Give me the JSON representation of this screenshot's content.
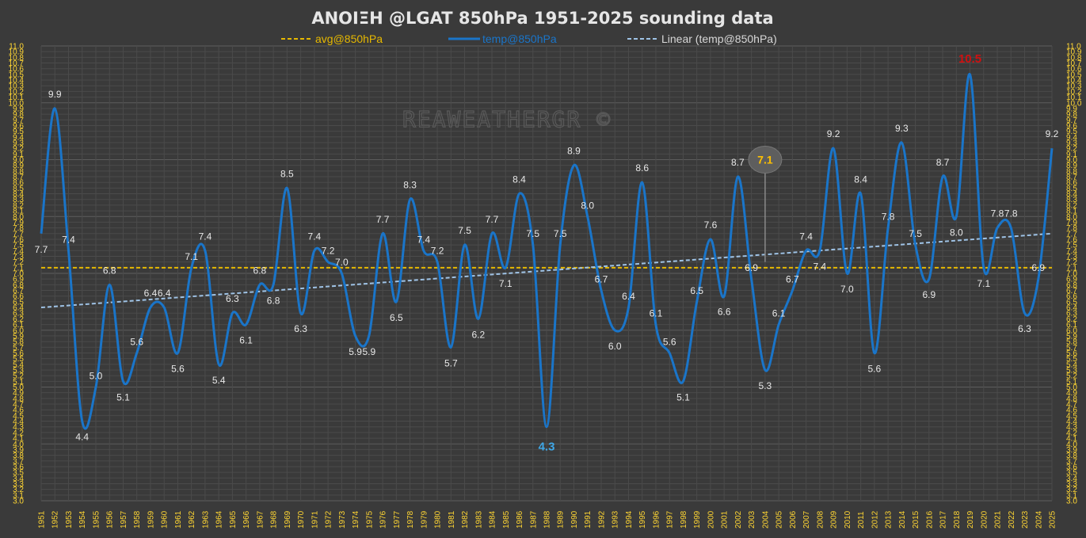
{
  "chart_data": {
    "type": "line",
    "title": "ΑΝΟΙΞΗ   @LGAT  850hPa  1951-2025 sounding data",
    "watermark": "REAWEATHERGR ©",
    "legend": {
      "placement": "top",
      "items": [
        {
          "key": "avg",
          "label": "avg@850hPa",
          "color": "#e6b800"
        },
        {
          "key": "temp",
          "label": "temp@850hPa",
          "color": "#1a75c9"
        },
        {
          "key": "linear",
          "label": "Linear (temp@850hPa)",
          "color": "#9fc3e6"
        }
      ]
    },
    "ylim": [
      3.0,
      11.0
    ],
    "ytick_step": 0.1,
    "grid": true,
    "x": [
      1951,
      1952,
      1953,
      1954,
      1955,
      1956,
      1957,
      1958,
      1959,
      1960,
      1961,
      1962,
      1963,
      1964,
      1965,
      1966,
      1967,
      1968,
      1969,
      1970,
      1971,
      1972,
      1973,
      1974,
      1975,
      1976,
      1977,
      1978,
      1979,
      1980,
      1981,
      1982,
      1983,
      1984,
      1985,
      1986,
      1987,
      1988,
      1989,
      1990,
      1991,
      1992,
      1993,
      1994,
      1995,
      1996,
      1997,
      1998,
      1999,
      2000,
      2001,
      2002,
      2003,
      2004,
      2005,
      2006,
      2007,
      2008,
      2009,
      2010,
      2011,
      2012,
      2013,
      2014,
      2015,
      2016,
      2017,
      2018,
      2019,
      2020,
      2021,
      2022,
      2023,
      2024,
      2025
    ],
    "x_labels": [
      "1951",
      "1952",
      "1953",
      "1954",
      "1955",
      "1956",
      "1957",
      "1958",
      "1959",
      "1960",
      "1961",
      "1962",
      "1963",
      "1964",
      "1965",
      "1966",
      "1967",
      "1968",
      "1969",
      "1970",
      "1971",
      "1972",
      "1973",
      "1974",
      "1975",
      "1976",
      "1977",
      "1978",
      "1979",
      "1980",
      "1981",
      "1982",
      "1983",
      "1984",
      "1985",
      "1986",
      "1987",
      "1988",
      "1989",
      "1990",
      "1991",
      "1992",
      "1993",
      "1994",
      "1995",
      "1996",
      "1997",
      "1998",
      "1999",
      "2000",
      "2001",
      "2002",
      "2003",
      "2004",
      "2005",
      "2006",
      "2007",
      "2008",
      "2009",
      "2010",
      "2011",
      "2012",
      "2013",
      "2014",
      "2015",
      "2016",
      "2017",
      "2018",
      "2019",
      "2020",
      "2021",
      "2022",
      "2023",
      "2024",
      "2025"
    ],
    "series": [
      {
        "name": "temp@850hPa",
        "values": [
          7.7,
          9.9,
          7.4,
          4.4,
          5.0,
          6.8,
          5.1,
          5.6,
          6.4,
          6.4,
          5.6,
          7.1,
          7.4,
          5.4,
          6.3,
          6.1,
          6.8,
          6.8,
          8.5,
          6.3,
          7.4,
          7.2,
          7.0,
          5.9,
          5.9,
          7.7,
          6.5,
          8.3,
          7.4,
          7.2,
          5.7,
          7.5,
          6.2,
          7.7,
          7.1,
          8.4,
          7.5,
          4.3,
          7.5,
          8.9,
          8.0,
          6.7,
          6.0,
          6.4,
          8.6,
          6.1,
          5.6,
          5.1,
          6.5,
          7.6,
          6.6,
          8.7,
          6.9,
          5.3,
          6.1,
          6.7,
          7.4,
          7.4,
          9.2,
          7.0,
          8.4,
          5.6,
          7.8,
          9.3,
          7.5,
          6.9,
          8.7,
          8.0,
          10.5,
          7.1,
          7.8,
          7.8,
          6.3,
          6.9,
          9.2
        ],
        "labels": [
          "7.7",
          "9.9",
          "7.4",
          "4.4",
          "5.0",
          "6.8",
          "5.1",
          "5.6",
          "6.4",
          "6.4",
          "5.6",
          "7.1",
          "7.4",
          "5.4",
          "6.3",
          "6.1",
          "6.8",
          "6.8",
          "8.5",
          "6.3",
          "7.4",
          "7.2",
          "7.0",
          "5.9",
          "5.9",
          "7.7",
          "6.5",
          "8.3",
          "7.4",
          "7.2",
          "5.7",
          "7.5",
          "6.2",
          "7.7",
          "7.1",
          "8.4",
          "7.5",
          "4.3",
          "7.5",
          "8.9",
          "8.0",
          "6.7",
          "6.0",
          "6.4",
          "8.6",
          "6.1",
          "5.6",
          "5.1",
          "6.5",
          "7.6",
          "6.6",
          "8.7",
          "6.9",
          "5.3",
          "6.1",
          "6.7",
          "7.4",
          "7.4",
          "9.2",
          "7.0",
          "8.4",
          "5.6",
          "7.8",
          "9.3",
          "7.5",
          "6.9",
          "8.7",
          "8.0",
          "10.5",
          "7.1",
          "7.8",
          "7.8",
          "6.3",
          "6.9",
          "9.2"
        ]
      }
    ],
    "average": {
      "value": 7.1,
      "label": "7.1",
      "callout_year": 2004
    },
    "linear_trend": {
      "start": 6.4,
      "end": 7.7
    },
    "highlights": {
      "max": {
        "year": 2019,
        "label": "10.5",
        "color": "#d01010"
      },
      "min": {
        "year": 1988,
        "label": "4.3",
        "color": "#3fa8e8"
      }
    }
  }
}
